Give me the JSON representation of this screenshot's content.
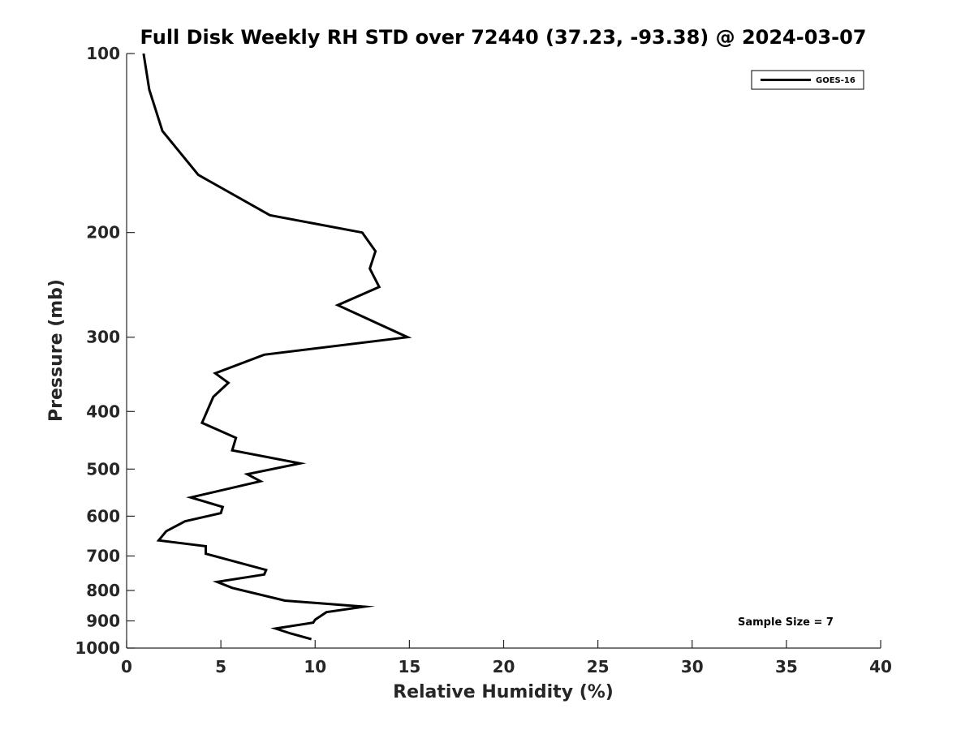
{
  "chart_data": {
    "type": "line",
    "title": "Full Disk Weekly RH STD over 72440 (37.23, -93.38) @ 2024-03-07",
    "xlabel": "Relative Humidity (%)",
    "ylabel": "Pressure (mb)",
    "xlim": [
      0,
      40
    ],
    "ylim": [
      100,
      1000
    ],
    "yscale": "log",
    "yinverted": true,
    "grid": false,
    "legend_position": "top-right",
    "x_ticks": [
      0,
      5,
      10,
      15,
      20,
      25,
      30,
      35,
      40
    ],
    "y_ticks": [
      100,
      200,
      300,
      400,
      500,
      600,
      700,
      800,
      900,
      1000
    ],
    "annotation": "Sample Size = 7",
    "colors": {
      "series": "#000000",
      "axis": "#262626"
    },
    "series": [
      {
        "name": "GOES-16",
        "points": [
          [
            0.9,
            100
          ],
          [
            1.2,
            115
          ],
          [
            1.9,
            135
          ],
          [
            3.8,
            160
          ],
          [
            7.6,
            187
          ],
          [
            12.5,
            200
          ],
          [
            13.2,
            215
          ],
          [
            12.9,
            230
          ],
          [
            13.4,
            247
          ],
          [
            11.2,
            265
          ],
          [
            14.9,
            300
          ],
          [
            7.3,
            321
          ],
          [
            4.7,
            345
          ],
          [
            5.4,
            358
          ],
          [
            4.6,
            378
          ],
          [
            4.0,
            418
          ],
          [
            5.8,
            443
          ],
          [
            5.6,
            465
          ],
          [
            9.2,
            489
          ],
          [
            6.4,
            510
          ],
          [
            7.1,
            524
          ],
          [
            3.4,
            558
          ],
          [
            5.1,
            579
          ],
          [
            5.0,
            593
          ],
          [
            3.1,
            612
          ],
          [
            2.1,
            636
          ],
          [
            1.7,
            659
          ],
          [
            4.2,
            674
          ],
          [
            4.2,
            694
          ],
          [
            7.4,
            739
          ],
          [
            7.3,
            752
          ],
          [
            4.8,
            774
          ],
          [
            5.6,
            792
          ],
          [
            8.4,
            832
          ],
          [
            12.6,
            852
          ],
          [
            10.6,
            870
          ],
          [
            10.0,
            896
          ],
          [
            9.9,
            906
          ],
          [
            7.9,
            927
          ],
          [
            8.7,
            945
          ],
          [
            9.8,
            966
          ]
        ]
      }
    ]
  }
}
